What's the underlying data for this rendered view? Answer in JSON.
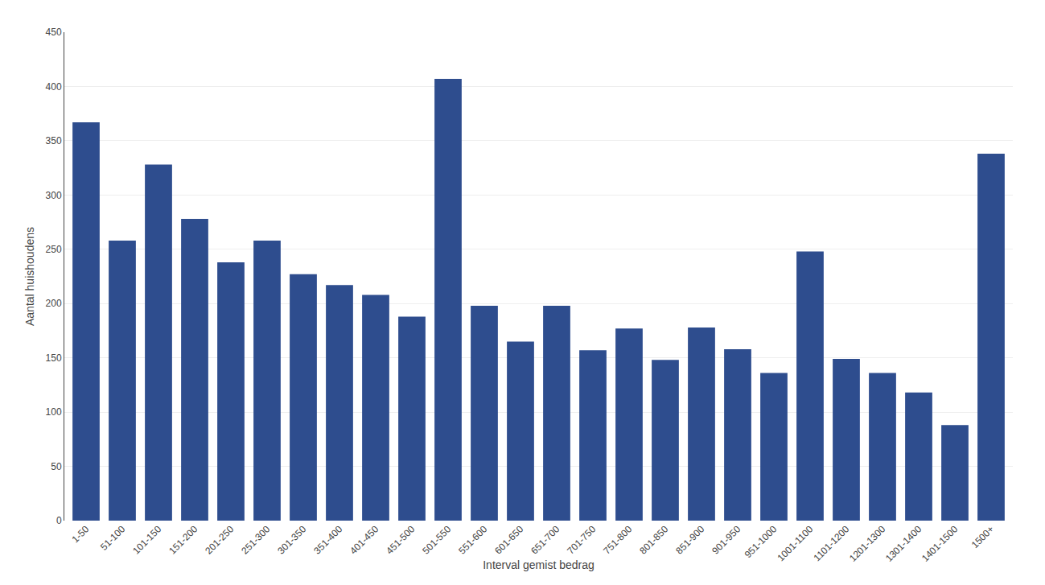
{
  "chart_data": {
    "type": "bar",
    "categories": [
      "1-50",
      "51-100",
      "101-150",
      "151-200",
      "201-250",
      "251-300",
      "301-350",
      "351-400",
      "401-450",
      "451-500",
      "501-550",
      "551-600",
      "601-650",
      "651-700",
      "701-750",
      "751-800",
      "801-850",
      "851-900",
      "901-950",
      "951-1000",
      "1001-1100",
      "1101-1200",
      "1201-1300",
      "1301-1400",
      "1401-1500",
      "1500+"
    ],
    "values": [
      367,
      258,
      328,
      278,
      238,
      258,
      227,
      217,
      208,
      188,
      407,
      198,
      165,
      198,
      157,
      177,
      148,
      178,
      158,
      136,
      248,
      149,
      136,
      118,
      88,
      338
    ],
    "color": "#2e4d8e",
    "xlabel": "Interval gemist bedrag",
    "ylabel": "Aantal huishoudens",
    "ylim": [
      0,
      450
    ],
    "yticks": [
      0,
      50,
      100,
      150,
      200,
      250,
      300,
      350,
      400,
      450
    ],
    "grid": true
  }
}
